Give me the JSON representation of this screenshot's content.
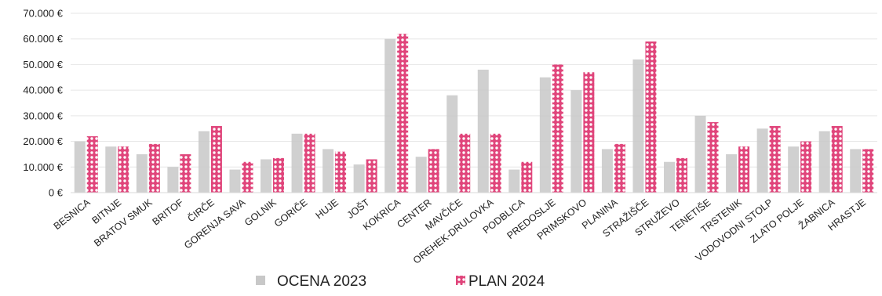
{
  "chart_data": {
    "type": "bar",
    "title": "",
    "xlabel": "",
    "ylabel": "",
    "ylim": [
      0,
      70000
    ],
    "y_ticks": [
      "0 €",
      "10.000 €",
      "20.000 €",
      "30.000 €",
      "40.000 €",
      "50.000 €",
      "60.000 €",
      "70.000 €"
    ],
    "y_tick_values": [
      0,
      10000,
      20000,
      30000,
      40000,
      50000,
      60000,
      70000
    ],
    "grid": true,
    "legend_position": "bottom",
    "categories": [
      "BESNICA",
      "BITNJE",
      "BRATOV SMUK",
      "BRITOF",
      "ČIRČE",
      "GORENJA SAVA",
      "GOLNIK",
      "GORIČE",
      "HUJE",
      "JOŠT",
      "KOKRICA",
      "CENTER",
      "MAVČIČE",
      "OREHEK-DRULOVKA",
      "PODBLICA",
      "PREDOSLJE",
      "PRIMSKOVO",
      "PLANINA",
      "STRAŽIŠČE",
      "STRUŽEVO",
      "TENETIŠE",
      "TRSTENIK",
      "VODOVODNI STOLP",
      "ZLATO POLJE",
      "ŽABNICA",
      "HRASTJE"
    ],
    "series": [
      {
        "name": "OCENA 2023",
        "color": "#c8c8c8",
        "values": [
          20000,
          18000,
          15000,
          10000,
          24000,
          9000,
          13000,
          23000,
          17000,
          11000,
          60000,
          14000,
          38000,
          48000,
          9000,
          45000,
          40000,
          17000,
          52000,
          12000,
          30000,
          15000,
          25000,
          18000,
          24000,
          17000
        ]
      },
      {
        "name": "PLAN 2024",
        "color": "#e0457b",
        "values": [
          22000,
          18000,
          19000,
          15000,
          26000,
          12000,
          13500,
          23000,
          16000,
          13000,
          62000,
          17000,
          23000,
          23000,
          12000,
          50000,
          47000,
          19000,
          59000,
          13500,
          27500,
          18000,
          26000,
          20000,
          26000,
          17000
        ]
      }
    ]
  }
}
